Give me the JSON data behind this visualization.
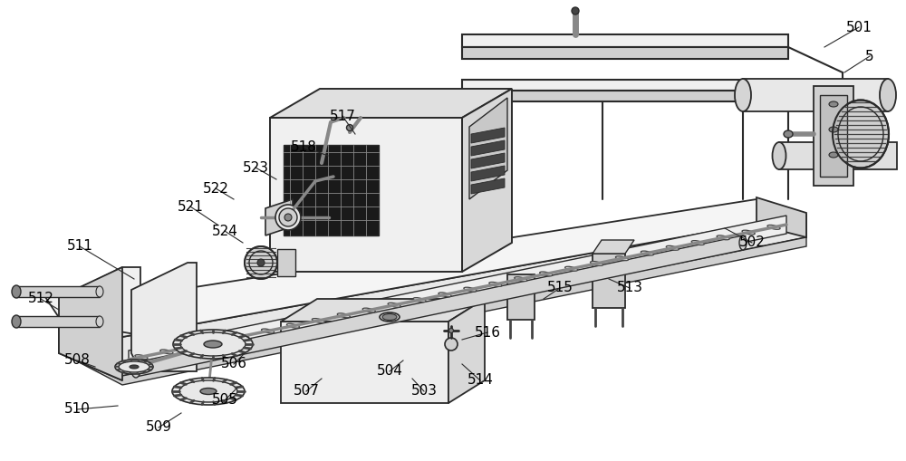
{
  "bg_color": "#ffffff",
  "lc": "#2a2a2a",
  "lg": "#d0d0d0",
  "mg": "#888888",
  "dg": "#444444",
  "vlg": "#e8e8e8",
  "black": "#111111",
  "figsize": [
    10.0,
    5.09
  ],
  "dpi": 100,
  "labels": [
    [
      "5",
      960,
      62
    ],
    [
      "501",
      948,
      30
    ],
    [
      "502",
      830,
      268
    ],
    [
      "503",
      468,
      432
    ],
    [
      "504",
      430,
      410
    ],
    [
      "505",
      248,
      442
    ],
    [
      "506",
      258,
      402
    ],
    [
      "507",
      338,
      432
    ],
    [
      "508",
      85,
      398
    ],
    [
      "509",
      175,
      472
    ],
    [
      "510",
      85,
      452
    ],
    [
      "511",
      88,
      272
    ],
    [
      "512",
      45,
      330
    ],
    [
      "513",
      695,
      318
    ],
    [
      "514",
      530,
      420
    ],
    [
      "515",
      618,
      318
    ],
    [
      "516",
      538,
      367
    ],
    [
      "517",
      378,
      128
    ],
    [
      "518",
      335,
      162
    ],
    [
      "521",
      210,
      228
    ],
    [
      "522",
      238,
      208
    ],
    [
      "523",
      282,
      185
    ],
    [
      "524",
      248,
      255
    ]
  ],
  "leader_lines": [
    [
      "5",
      960,
      62,
      932,
      80
    ],
    [
      "501",
      948,
      30,
      910,
      52
    ],
    [
      "502",
      830,
      268,
      800,
      252
    ],
    [
      "503",
      468,
      432,
      455,
      418
    ],
    [
      "504",
      430,
      410,
      445,
      398
    ],
    [
      "505",
      248,
      442,
      262,
      428
    ],
    [
      "506",
      258,
      402,
      270,
      390
    ],
    [
      "507",
      338,
      432,
      355,
      418
    ],
    [
      "508",
      85,
      398,
      105,
      405
    ],
    [
      "509",
      175,
      472,
      200,
      456
    ],
    [
      "510",
      85,
      452,
      130,
      448
    ],
    [
      "511",
      88,
      272,
      148,
      308
    ],
    [
      "512",
      45,
      330,
      65,
      342
    ],
    [
      "513",
      695,
      318,
      672,
      308
    ],
    [
      "514",
      530,
      420,
      510,
      402
    ],
    [
      "515",
      618,
      318,
      600,
      330
    ],
    [
      "516",
      538,
      367,
      510,
      375
    ],
    [
      "517",
      378,
      128,
      392,
      148
    ],
    [
      "518",
      335,
      162,
      362,
      172
    ],
    [
      "521",
      210,
      228,
      240,
      248
    ],
    [
      "522",
      238,
      208,
      258,
      220
    ],
    [
      "523",
      282,
      185,
      305,
      198
    ],
    [
      "524",
      248,
      255,
      268,
      268
    ]
  ]
}
